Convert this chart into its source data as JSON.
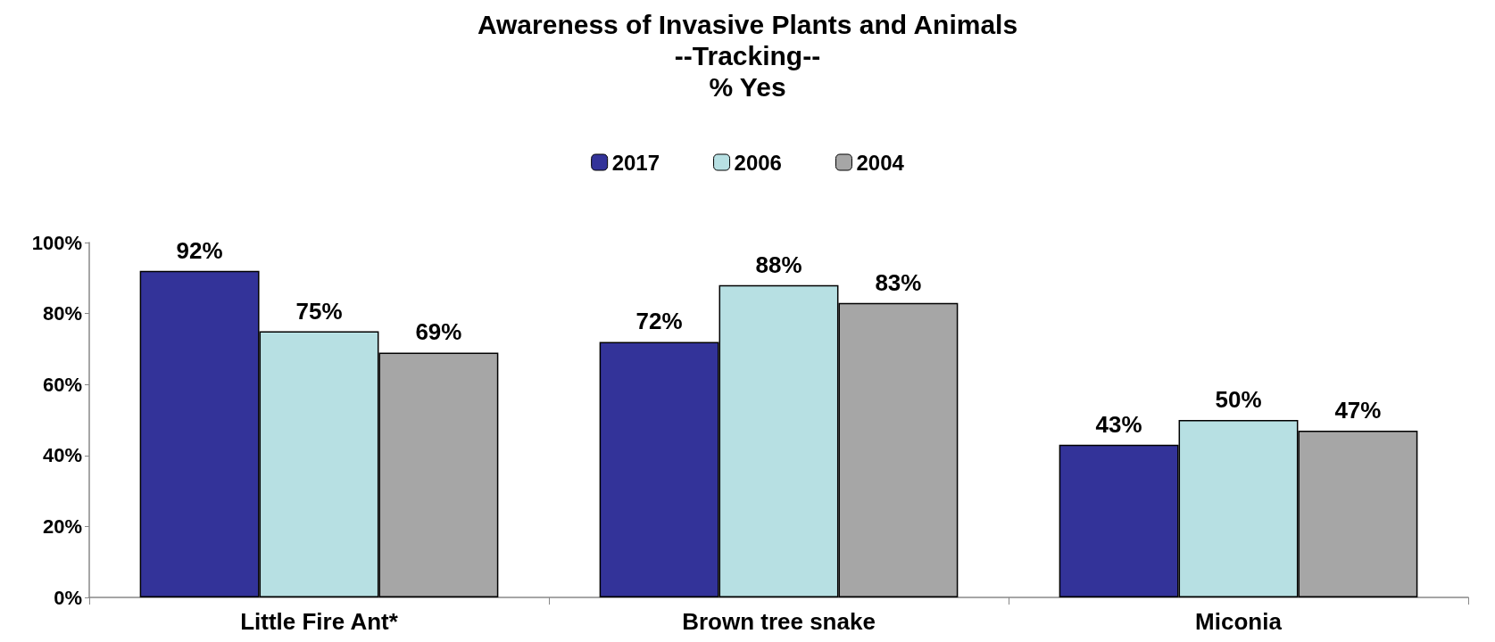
{
  "chart_data": {
    "type": "bar",
    "title": "Awareness of Invasive Plants and Animals\n--Tracking--\n% Yes",
    "categories": [
      "Little Fire Ant*",
      "Brown tree snake",
      "Miconia"
    ],
    "series": [
      {
        "name": "2017",
        "color": "#333399",
        "values": [
          92,
          72,
          43
        ],
        "value_labels": [
          "92%",
          "72%",
          "43%"
        ]
      },
      {
        "name": "2006",
        "color": "#b7e0e3",
        "values": [
          75,
          88,
          50
        ],
        "value_labels": [
          "75%",
          "88%",
          "50%"
        ]
      },
      {
        "name": "2004",
        "color": "#a6a6a6",
        "values": [
          69,
          83,
          47
        ],
        "value_labels": [
          "69%",
          "83%",
          "47%"
        ]
      }
    ],
    "ylim": [
      0,
      100
    ],
    "yticks": [
      {
        "value": 0,
        "label": "0%"
      },
      {
        "value": 20,
        "label": "20%"
      },
      {
        "value": 40,
        "label": "40%"
      },
      {
        "value": 60,
        "label": "60%"
      },
      {
        "value": 80,
        "label": "80%"
      },
      {
        "value": 100,
        "label": "100%"
      }
    ],
    "grid": false,
    "legend": "top"
  }
}
